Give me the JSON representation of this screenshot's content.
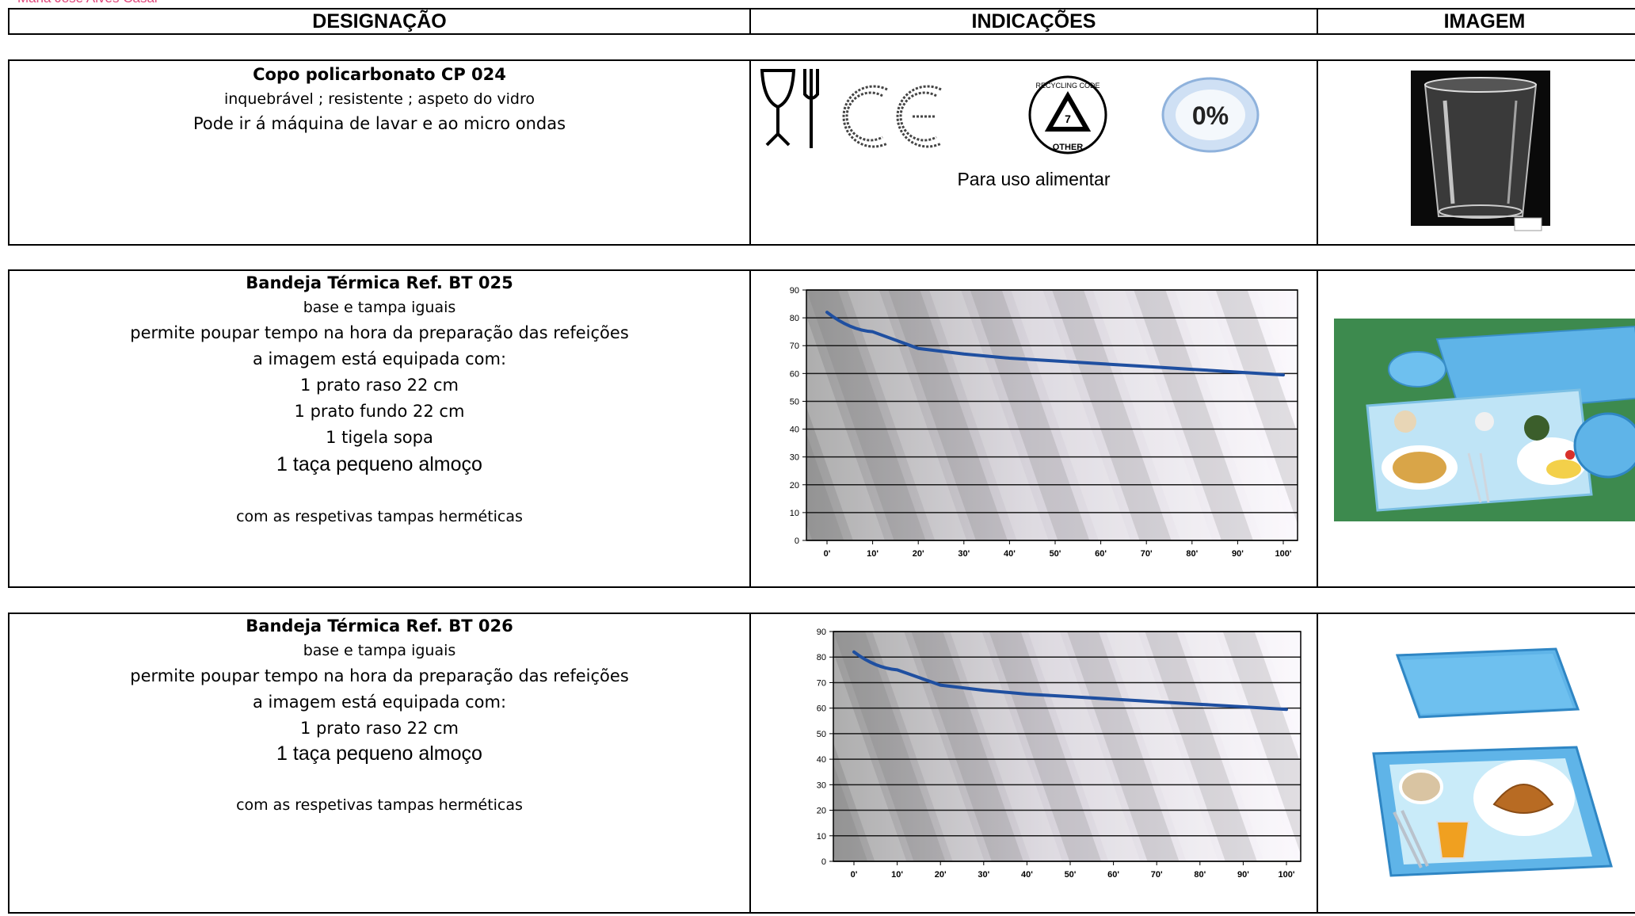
{
  "brand": "Maria José Alves Casal",
  "header": {
    "designacao": "DESIGNAÇÃO",
    "indicacoes": "INDICAÇÕES",
    "imagem": "IMAGEM"
  },
  "products": [
    {
      "title": "Copo policarbonato CP 024",
      "lines": [
        "inquebrável ; resistente ; aspeto do vidro",
        "Pode ir á máquina de lavar e ao micro ondas"
      ],
      "icons": [
        "food-safe-icon",
        "ce-mark-icon",
        "recycling-7-other-icon",
        "zero-bpa-badge-icon"
      ],
      "icon_text": {
        "recycling_top": "RECYCLING CODE",
        "recycling_num": "7",
        "recycling_bottom": "OTHER",
        "badge_pct": "0%"
      },
      "caption": "Para uso alimentar",
      "image": "clear polycarbonate cup"
    },
    {
      "title": "Bandeja Térmica Ref. BT 025",
      "lines": [
        "base e tampa iguais",
        "permite poupar tempo na hora da preparação das refeições",
        "a imagem está equipada com:",
        "1 prato raso 22 cm",
        "1 prato fundo 22 cm",
        "1 tigela sopa"
      ],
      "lines_large": [
        "1 taça pequeno almoço"
      ],
      "footer": "com as respetivas tampas herméticas",
      "image": "blue thermal tray with plates and lids"
    },
    {
      "title": "Bandeja Térmica Ref. BT 026",
      "lines": [
        "base e tampa iguais",
        "permite poupar tempo na hora da preparação das refeições",
        "a imagem está equipada com:",
        "1 prato raso 22 cm"
      ],
      "lines_large": [
        "1 taça pequeno almoço"
      ],
      "footer": "com as respetivas tampas herméticas",
      "image": "blue thermal tray with croissant and juice"
    }
  ],
  "chart_data": [
    {
      "type": "line",
      "title": "",
      "xlabel": "",
      "ylabel": "",
      "categories": [
        "0'",
        "10'",
        "20'",
        "30'",
        "40'",
        "50'",
        "60'",
        "70'",
        "80'",
        "90'",
        "100'"
      ],
      "yticks": [
        "0",
        "10",
        "20",
        "30",
        "40",
        "50",
        "60",
        "70",
        "80",
        "90"
      ],
      "ylim": [
        0,
        90
      ],
      "series": [
        {
          "values": [
            82,
            75,
            69,
            67,
            65.5,
            64.5,
            63.5,
            62.5,
            61.5,
            60.5,
            59.5
          ],
          "color": "#1f4fa0"
        }
      ],
      "grid": true
    },
    {
      "type": "line",
      "title": "",
      "xlabel": "",
      "ylabel": "",
      "categories": [
        "0'",
        "10'",
        "20'",
        "30'",
        "40'",
        "50'",
        "60'",
        "70'",
        "80'",
        "90'",
        "100'"
      ],
      "yticks": [
        "0",
        "10",
        "20",
        "30",
        "40",
        "50",
        "60",
        "70",
        "80",
        "90"
      ],
      "ylim": [
        0,
        90
      ],
      "series": [
        {
          "values": [
            82,
            75,
            69,
            67,
            65.5,
            64.5,
            63.5,
            62.5,
            61.5,
            60.5,
            59.5
          ],
          "color": "#1f4fa0"
        }
      ],
      "grid": true
    }
  ]
}
